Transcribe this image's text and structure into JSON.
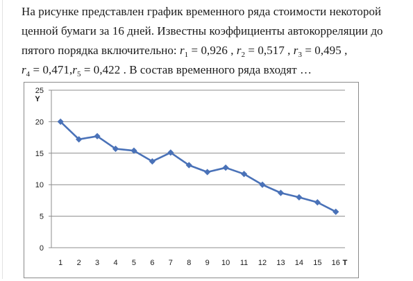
{
  "question": {
    "line1": "На рисунке представлен график временного ряда стоимости некоторой",
    "line2": "ценной бумаги за 16 дней. Известны коэффициенты автокорреляции до",
    "line3_prefix": "пятого порядка включительно:",
    "line4_suffix": ". В состав временного ряда входят …",
    "coefficients": [
      {
        "symbol": "r",
        "sub": "1",
        "value": "0,926"
      },
      {
        "symbol": "r",
        "sub": "2",
        "value": "0,517"
      },
      {
        "symbol": "r",
        "sub": "3",
        "value": "0,495"
      },
      {
        "symbol": "r",
        "sub": "4",
        "value": "0,471"
      },
      {
        "symbol": "r",
        "sub": "5",
        "value": "0,422"
      }
    ]
  },
  "chart_data": {
    "type": "line",
    "title": "",
    "xlabel": "T",
    "ylabel": "Y",
    "x": [
      1,
      2,
      3,
      4,
      5,
      6,
      7,
      8,
      9,
      10,
      11,
      12,
      13,
      14,
      15,
      16
    ],
    "series": [
      {
        "values": [
          20.0,
          17.2,
          17.7,
          15.7,
          15.4,
          13.7,
          15.1,
          13.1,
          12.0,
          12.7,
          11.7,
          10.0,
          8.7,
          8.0,
          7.2,
          5.7
        ]
      }
    ],
    "ylim": [
      0,
      25
    ],
    "yticks": [
      0,
      5,
      10,
      15,
      20,
      25
    ],
    "grid": true,
    "legend": "none",
    "line_color": "#4a72b8",
    "marker": "diamond"
  }
}
